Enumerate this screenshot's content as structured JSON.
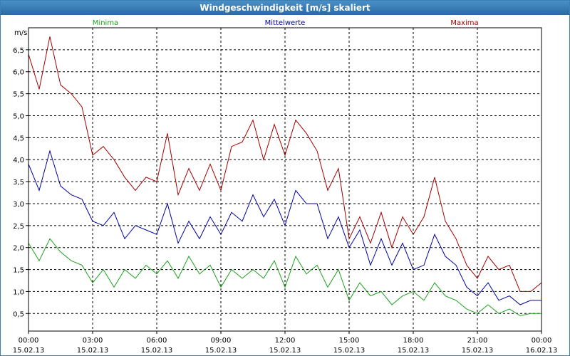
{
  "window": {
    "title": "Windgeschwindigkeit [m/s] skaliert"
  },
  "chart_data": {
    "type": "line",
    "title": "Windgeschwindigkeit [m/s] skaliert",
    "ylabel": "m/s",
    "xlabel": "",
    "ylim": [
      0.1,
      7.0
    ],
    "xlim": [
      0,
      24
    ],
    "grid": true,
    "yticks": [
      "0,5",
      "1,0",
      "1,5",
      "2,0",
      "2,5",
      "3,0",
      "3,5",
      "4,0",
      "4,5",
      "5,0",
      "5,5",
      "6,0",
      "6,5"
    ],
    "ytick_values": [
      0.5,
      1.0,
      1.5,
      2.0,
      2.5,
      3.0,
      3.5,
      4.0,
      4.5,
      5.0,
      5.5,
      6.0,
      6.5
    ],
    "xticks": [
      {
        "time": "00:00",
        "date": "15.02.13"
      },
      {
        "time": "03:00",
        "date": "15.02.13"
      },
      {
        "time": "06:00",
        "date": "15.02.13"
      },
      {
        "time": "09:00",
        "date": "15.02.13"
      },
      {
        "time": "12:00",
        "date": "15.02.13"
      },
      {
        "time": "15:00",
        "date": "15.02.13"
      },
      {
        "time": "18:00",
        "date": "15.02.13"
      },
      {
        "time": "21:00",
        "date": "15.02.13"
      },
      {
        "time": "00:00",
        "date": "16.02.13"
      }
    ],
    "xtick_values": [
      0,
      3,
      6,
      9,
      12,
      15,
      18,
      21,
      24
    ],
    "series": [
      {
        "name": "Minima",
        "color": "#1ea01e",
        "x": [
          0,
          0.5,
          1,
          1.5,
          2,
          2.5,
          3,
          3.5,
          4,
          4.5,
          5,
          5.5,
          6,
          6.5,
          7,
          7.5,
          8,
          8.5,
          9,
          9.5,
          10,
          10.5,
          11,
          11.5,
          12,
          12.5,
          13,
          13.5,
          14,
          14.5,
          15,
          15.5,
          16,
          16.5,
          17,
          17.5,
          18,
          18.5,
          19,
          19.5,
          20,
          20.5,
          21,
          21.5,
          22,
          22.5,
          23,
          23.5,
          24
        ],
        "values": [
          2.1,
          1.7,
          2.2,
          1.9,
          1.7,
          1.6,
          1.2,
          1.5,
          1.1,
          1.5,
          1.3,
          1.6,
          1.4,
          1.7,
          1.3,
          1.8,
          1.4,
          1.6,
          1.1,
          1.5,
          1.3,
          1.5,
          1.3,
          1.7,
          1.1,
          1.8,
          1.4,
          1.6,
          1.1,
          1.5,
          0.8,
          1.2,
          0.9,
          1.0,
          0.7,
          0.9,
          1.0,
          0.8,
          1.2,
          0.9,
          0.8,
          0.6,
          0.5,
          0.7,
          0.5,
          0.6,
          0.45,
          0.5,
          0.5
        ]
      },
      {
        "name": "Mittelwerte",
        "color": "#0000a0",
        "x": [
          0,
          0.5,
          1,
          1.5,
          2,
          2.5,
          3,
          3.5,
          4,
          4.5,
          5,
          5.5,
          6,
          6.5,
          7,
          7.5,
          8,
          8.5,
          9,
          9.5,
          10,
          10.5,
          11,
          11.5,
          12,
          12.5,
          13,
          13.5,
          14,
          14.5,
          15,
          15.5,
          16,
          16.5,
          17,
          17.5,
          18,
          18.5,
          19,
          19.5,
          20,
          20.5,
          21,
          21.5,
          22,
          22.5,
          23,
          23.5,
          24
        ],
        "values": [
          3.9,
          3.3,
          4.2,
          3.4,
          3.2,
          3.1,
          2.6,
          2.5,
          2.8,
          2.2,
          2.5,
          2.4,
          2.3,
          3.0,
          2.1,
          2.6,
          2.2,
          2.7,
          2.3,
          2.8,
          2.6,
          3.2,
          2.7,
          3.1,
          2.5,
          3.3,
          3.0,
          3.0,
          2.2,
          2.7,
          2.0,
          2.4,
          1.6,
          2.2,
          1.6,
          2.1,
          1.5,
          1.6,
          2.3,
          1.8,
          1.6,
          1.1,
          0.9,
          1.2,
          0.8,
          0.9,
          0.7,
          0.8,
          0.8
        ]
      },
      {
        "name": "Maxima",
        "color": "#a00000",
        "x": [
          0,
          0.5,
          1,
          1.5,
          2,
          2.5,
          3,
          3.5,
          4,
          4.5,
          5,
          5.5,
          6,
          6.5,
          7,
          7.5,
          8,
          8.5,
          9,
          9.5,
          10,
          10.5,
          11,
          11.5,
          12,
          12.5,
          13,
          13.5,
          14,
          14.5,
          15,
          15.5,
          16,
          16.5,
          17,
          17.5,
          18,
          18.5,
          19,
          19.5,
          20,
          20.5,
          21,
          21.5,
          22,
          22.5,
          23,
          23.5,
          24
        ],
        "values": [
          6.4,
          5.6,
          6.8,
          5.7,
          5.5,
          5.2,
          4.1,
          4.3,
          4.0,
          3.6,
          3.3,
          3.6,
          3.5,
          4.6,
          3.2,
          3.8,
          3.3,
          3.9,
          3.3,
          4.3,
          4.4,
          4.9,
          4.0,
          4.8,
          4.1,
          4.9,
          4.6,
          4.2,
          3.3,
          3.8,
          2.2,
          2.7,
          2.1,
          2.8,
          2.0,
          2.7,
          2.3,
          2.7,
          3.6,
          2.6,
          2.2,
          1.6,
          1.3,
          1.8,
          1.5,
          1.6,
          1.0,
          1.0,
          1.2
        ]
      }
    ]
  }
}
